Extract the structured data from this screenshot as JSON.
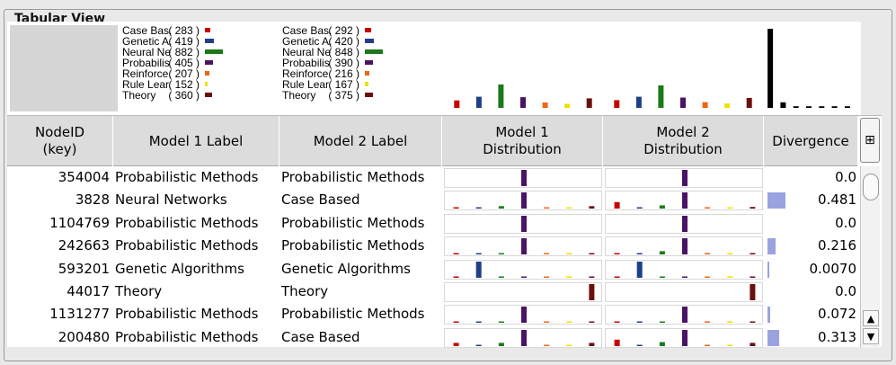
{
  "panel": {
    "title": "Tabular View"
  },
  "categories": [
    {
      "key": "case",
      "color": "#c80000"
    },
    {
      "key": "genetic",
      "color": "#1e3f8a"
    },
    {
      "key": "neural",
      "color": "#1a7a1a"
    },
    {
      "key": "prob",
      "color": "#4a1466"
    },
    {
      "key": "reinf",
      "color": "#f06414"
    },
    {
      "key": "rule",
      "color": "#f0e000"
    },
    {
      "key": "theory",
      "color": "#6a1010"
    }
  ],
  "summary": {
    "model1_legend": [
      {
        "label": "Case Bas.",
        "count": "( 283 )"
      },
      {
        "label": "Genetic A.",
        "count": "( 419 )"
      },
      {
        "label": "Neural Ne",
        "count": "( 882 )"
      },
      {
        "label": "Probabilis",
        "count": "( 405 )"
      },
      {
        "label": "Reinforce.",
        "count": "( 207 )"
      },
      {
        "label": "Rule Lear.",
        "count": "( 152 )"
      },
      {
        "label": "Theory",
        "count": "( 360 )"
      }
    ],
    "model1_values": [
      283,
      419,
      882,
      405,
      207,
      152,
      360
    ],
    "model2_legend": [
      {
        "label": "Case Bas.",
        "count": "( 292 )"
      },
      {
        "label": "Genetic A.",
        "count": "( 420 )"
      },
      {
        "label": "Neural Ne",
        "count": "( 848 )"
      },
      {
        "label": "Probabilis",
        "count": "( 390 )"
      },
      {
        "label": "Reinforce.",
        "count": "( 216 )"
      },
      {
        "label": "Rule Lear.",
        "count": "( 167 )"
      },
      {
        "label": "Theory",
        "count": "( 375 )"
      }
    ],
    "model2_values": [
      292,
      420,
      848,
      390,
      216,
      167,
      375
    ],
    "divergence_hist": [
      1.0,
      0.07,
      0.02,
      0.02,
      0.02,
      0.02,
      0.02
    ]
  },
  "table": {
    "headers": {
      "nodeid": "NodeID\n(key)",
      "model1_label": "Model 1 Label",
      "model2_label": "Model 2 Label",
      "model1_dist": "Model 1\nDistribution",
      "model2_dist": "Model 2\nDistribution",
      "divergence": "Divergence"
    },
    "column_toggle_icon": "column-chooser-icon",
    "rows": [
      {
        "nodeid": "354004",
        "m1": "Probabilistic Methods",
        "m2": "Probabilistic Methods",
        "d1": [
          0,
          0,
          0,
          1,
          0,
          0,
          0
        ],
        "d2": [
          0,
          0,
          0,
          1,
          0,
          0,
          0
        ],
        "div": "0.0",
        "divv": 0.0
      },
      {
        "nodeid": "3828",
        "m1": "Neural Networks",
        "m2": "Case Based",
        "d1": [
          0.08,
          0.08,
          0.15,
          1,
          0.08,
          0.08,
          0.15
        ],
        "d2": [
          0.4,
          0.08,
          0.2,
          1,
          0.08,
          0.08,
          0.1
        ],
        "div": "0.481",
        "divv": 0.481
      },
      {
        "nodeid": "1104769",
        "m1": "Probabilistic Methods",
        "m2": "Probabilistic Methods",
        "d1": [
          0,
          0,
          0,
          1,
          0,
          0,
          0
        ],
        "d2": [
          0,
          0,
          0,
          1,
          0,
          0,
          0
        ],
        "div": "0.0",
        "divv": 0.0
      },
      {
        "nodeid": "242663",
        "m1": "Probabilistic Methods",
        "m2": "Probabilistic Methods",
        "d1": [
          0.08,
          0.08,
          0.08,
          1,
          0.08,
          0.08,
          0.08
        ],
        "d2": [
          0.08,
          0.08,
          0.2,
          1,
          0.08,
          0.08,
          0.08
        ],
        "div": "0.216",
        "divv": 0.216
      },
      {
        "nodeid": "593201",
        "m1": "Genetic Algorithms",
        "m2": "Genetic Algorithms",
        "d1": [
          0.05,
          1,
          0.05,
          0.05,
          0.05,
          0.05,
          0.05
        ],
        "d2": [
          0.05,
          1,
          0.05,
          0.05,
          0.05,
          0.05,
          0.05
        ],
        "div": "0.0070",
        "divv": 0.007
      },
      {
        "nodeid": "44017",
        "m1": "Theory",
        "m2": "Theory",
        "d1": [
          0,
          0,
          0,
          0,
          0,
          0,
          1
        ],
        "d2": [
          0,
          0,
          0,
          0,
          0,
          0,
          1
        ],
        "div": "0.0",
        "divv": 0.0
      },
      {
        "nodeid": "1131277",
        "m1": "Probabilistic Methods",
        "m2": "Probabilistic Methods",
        "d1": [
          0.05,
          0.05,
          0.05,
          1,
          0.05,
          0.05,
          0.05
        ],
        "d2": [
          0.05,
          0.05,
          0.05,
          1,
          0.05,
          0.05,
          0.05
        ],
        "div": "0.072",
        "divv": 0.072
      },
      {
        "nodeid": "200480",
        "m1": "Probabilistic Methods",
        "m2": "Case Based",
        "d1": [
          0.2,
          0.08,
          0.2,
          1,
          0.08,
          0.08,
          0.2
        ],
        "d2": [
          0.4,
          0.08,
          0.25,
          1,
          0.08,
          0.08,
          0.2
        ],
        "div": "0.313",
        "divv": 0.313
      }
    ]
  }
}
